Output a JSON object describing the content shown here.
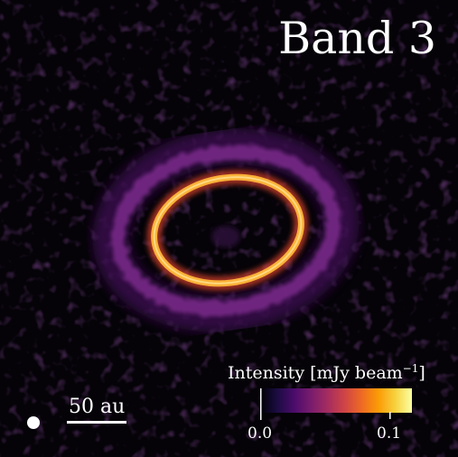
{
  "title": "Band 3",
  "scalebar": {
    "label": "50 au"
  },
  "colorbar": {
    "label_main": "Intensity [mJy beam",
    "label_exp": "−1",
    "label_close": "]",
    "ticks": [
      "0.0",
      "0.1"
    ],
    "colormap": [
      "#000004",
      "#1b0c41",
      "#4a0c6b",
      "#781c6d",
      "#a52c60",
      "#cf4446",
      "#ed6925",
      "#fb9b06",
      "#f7d13d",
      "#fcffa4"
    ]
  },
  "colors": {
    "background": "#050308",
    "outer_ring": "#7a2a8a",
    "inner_ring": "#fbb238"
  }
}
